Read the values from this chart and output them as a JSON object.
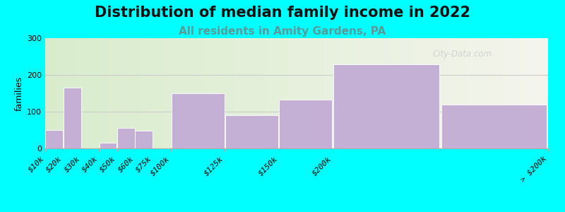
{
  "title": "Distribution of median family income in 2022",
  "subtitle": "All residents in Amity Gardens, PA",
  "ylabel": "families",
  "background_color": "#00FFFF",
  "bar_color": "#C4B0D4",
  "bg_color_left": "#d8eccc",
  "bg_color_right": "#f4f4ec",
  "watermark": "City-Data.com",
  "title_fontsize": 15,
  "subtitle_fontsize": 11,
  "ylabel_fontsize": 9,
  "tick_fontsize": 8,
  "bin_edges": [
    0,
    1,
    2,
    3,
    4,
    5,
    6,
    7,
    10,
    13,
    16,
    22,
    28
  ],
  "values": [
    50,
    165,
    0,
    15,
    55,
    48,
    0,
    150,
    90,
    132,
    228,
    120
  ],
  "tick_positions": [
    0,
    1,
    2,
    3,
    4,
    5,
    6,
    7,
    10,
    13,
    16,
    22,
    28
  ],
  "tick_labels": [
    "$10k",
    "$20k",
    "$30k",
    "$40k",
    "$50k",
    "$60k",
    "$75k",
    "$100k",
    "$125k",
    "$150k",
    "$200k",
    "",
    "> $200k"
  ],
  "ylim": [
    0,
    300
  ],
  "yticks": [
    0,
    100,
    200,
    300
  ],
  "subtitle_color": "#5a9a9a"
}
